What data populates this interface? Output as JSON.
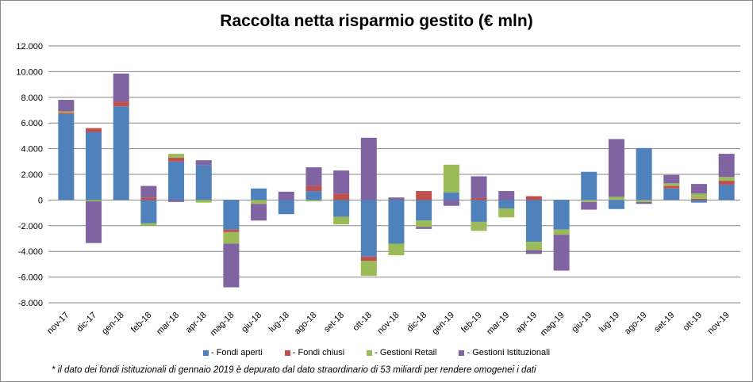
{
  "chart_data": {
    "type": "bar",
    "stacked": true,
    "title": "Raccolta netta risparmio gestito (€ mln)",
    "xlabel": "",
    "ylabel": "",
    "ylim": [
      -8000,
      12000
    ],
    "yticks": [
      "12.000",
      "10.000",
      "8.000",
      "6.000",
      "4.000",
      "2.000",
      "0",
      "-2.000",
      "-4.000",
      "-6.000",
      "-8.000"
    ],
    "ytick_values": [
      12000,
      10000,
      8000,
      6000,
      4000,
      2000,
      0,
      -2000,
      -4000,
      -6000,
      -8000
    ],
    "grid": true,
    "legend_position": "bottom",
    "categories": [
      "nov-17",
      "dic-17",
      "gen-18",
      "feb-18",
      "mar-18",
      "apr-18",
      "mag-18",
      "giu-18",
      "lug-18",
      "ago-18",
      "set-18",
      "ott-18",
      "nov-18",
      "dic-18",
      "gen-19",
      "feb-19",
      "mar-19",
      "apr-19",
      "mag-19",
      "giu-19",
      "lug-19",
      "ago-19",
      "set-19",
      "ott-19",
      "nov-19"
    ],
    "series": [
      {
        "name": "- Fondi aperti",
        "color": "#4f81bd",
        "values": [
          6700,
          5300,
          7300,
          -1800,
          3000,
          2700,
          -2300,
          900,
          -1100,
          700,
          -1300,
          -4400,
          -3400,
          -1600,
          600,
          -1700,
          -650,
          -3250,
          -2300,
          2200,
          -700,
          4050,
          900,
          -200,
          1200
        ]
      },
      {
        "name": "- Fondi chiusi",
        "color": "#c0504d",
        "values": [
          100,
          300,
          350,
          200,
          300,
          0,
          -200,
          0,
          0,
          400,
          500,
          -350,
          0,
          700,
          0,
          150,
          0,
          300,
          0,
          0,
          0,
          0,
          200,
          100,
          300
        ]
      },
      {
        "name": "- Gestioni Retail",
        "color": "#9bbb59",
        "values": [
          100,
          -100,
          0,
          -200,
          300,
          -200,
          -900,
          -300,
          0,
          -100,
          -600,
          -1150,
          -900,
          -500,
          2150,
          -700,
          -700,
          -650,
          -400,
          -150,
          250,
          -150,
          200,
          400,
          300
        ]
      },
      {
        "name": "- Gestioni Istituzionali",
        "color": "#8064a2",
        "values": [
          900,
          -3250,
          2200,
          900,
          -150,
          400,
          -3400,
          -1300,
          650,
          1450,
          1800,
          4850,
          200,
          -150,
          -450,
          1700,
          700,
          -300,
          -2800,
          -600,
          4500,
          -150,
          650,
          750,
          1800
        ]
      }
    ]
  },
  "footnote": "* il dato dei fondi istituzionali di gennaio 2019 è depurato  dal dato straordinario  di 53 miliardi  per rendere omogenei i dati"
}
